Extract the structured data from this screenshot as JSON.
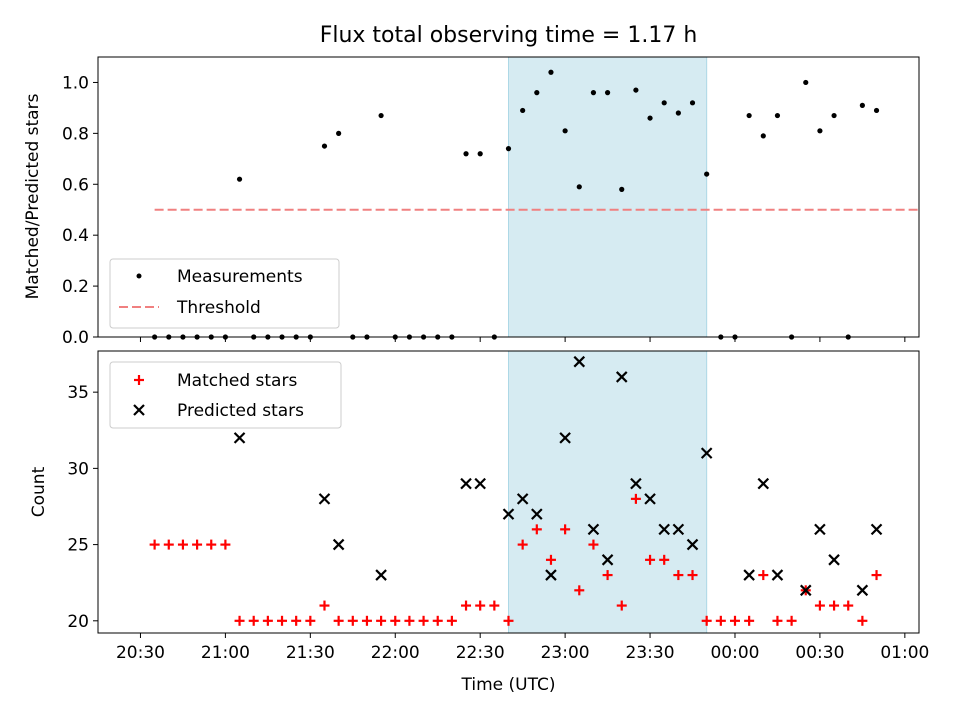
{
  "colors": {
    "shade": "#add8e6",
    "threshold": "#f08080",
    "matched": "#ff0000",
    "predicted": "#000000",
    "measurement": "#000000"
  },
  "chart_data": [
    {
      "type": "scatter",
      "title": "Flux total observing time = 1.17 h",
      "xlabel": "",
      "ylabel": "Matched/Predicted stars",
      "ylim": [
        0,
        1.1
      ],
      "yticks": [
        "0.0",
        "0.2",
        "0.4",
        "0.6",
        "0.8",
        "1.0"
      ],
      "shaded_span": [
        "22:40",
        "23:50"
      ],
      "legend": {
        "placement": "lower-left",
        "entries": [
          "Measurements",
          "Threshold"
        ]
      },
      "threshold": {
        "name": "Threshold",
        "value": 0.5,
        "x": [
          "20:35",
          "01:05"
        ]
      },
      "series": [
        {
          "name": "Measurements",
          "points": [
            [
              "20:35",
              0.0
            ],
            [
              "20:40",
              0.0
            ],
            [
              "20:45",
              0.0
            ],
            [
              "20:50",
              0.0
            ],
            [
              "20:55",
              0.0
            ],
            [
              "21:00",
              0.0
            ],
            [
              "21:05",
              0.62
            ],
            [
              "21:10",
              0.0
            ],
            [
              "21:15",
              0.0
            ],
            [
              "21:20",
              0.0
            ],
            [
              "21:25",
              0.0
            ],
            [
              "21:30",
              0.0
            ],
            [
              "21:35",
              0.75
            ],
            [
              "21:40",
              0.8
            ],
            [
              "21:45",
              0.0
            ],
            [
              "21:50",
              0.0
            ],
            [
              "21:55",
              0.87
            ],
            [
              "22:00",
              0.0
            ],
            [
              "22:05",
              0.0
            ],
            [
              "22:10",
              0.0
            ],
            [
              "22:15",
              0.0
            ],
            [
              "22:20",
              0.0
            ],
            [
              "22:25",
              0.72
            ],
            [
              "22:30",
              0.72
            ],
            [
              "22:35",
              0.0
            ],
            [
              "22:40",
              0.74
            ],
            [
              "22:45",
              0.89
            ],
            [
              "22:50",
              0.96
            ],
            [
              "22:55",
              1.04
            ],
            [
              "23:00",
              0.81
            ],
            [
              "23:05",
              0.59
            ],
            [
              "23:10",
              0.96
            ],
            [
              "23:15",
              0.96
            ],
            [
              "23:20",
              0.58
            ],
            [
              "23:25",
              0.97
            ],
            [
              "23:30",
              0.86
            ],
            [
              "23:35",
              0.92
            ],
            [
              "23:40",
              0.88
            ],
            [
              "23:45",
              0.92
            ],
            [
              "23:50",
              0.64
            ],
            [
              "23:55",
              0.0
            ],
            [
              "00:00",
              0.0
            ],
            [
              "00:05",
              0.87
            ],
            [
              "00:10",
              0.79
            ],
            [
              "00:15",
              0.87
            ],
            [
              "00:20",
              0.0
            ],
            [
              "00:25",
              1.0
            ],
            [
              "00:30",
              0.81
            ],
            [
              "00:35",
              0.87
            ],
            [
              "00:40",
              0.0
            ],
            [
              "00:45",
              0.91
            ],
            [
              "00:50",
              0.89
            ]
          ]
        }
      ]
    },
    {
      "type": "scatter",
      "title": "",
      "xlabel": "Time (UTC)",
      "ylabel": "Count",
      "ylim": [
        19.2,
        37.7
      ],
      "yticks": [
        "20",
        "25",
        "30",
        "35"
      ],
      "xticks": [
        "20:30",
        "21:00",
        "21:30",
        "22:00",
        "22:30",
        "23:00",
        "23:30",
        "00:00",
        "00:30",
        "01:00"
      ],
      "shaded_span": [
        "22:40",
        "23:50"
      ],
      "legend": {
        "placement": "upper-left",
        "entries": [
          "Matched stars",
          "Predicted stars"
        ]
      },
      "series": [
        {
          "name": "Matched stars",
          "marker": "plus",
          "points": [
            [
              "20:35",
              25
            ],
            [
              "20:40",
              25
            ],
            [
              "20:45",
              25
            ],
            [
              "20:50",
              25
            ],
            [
              "20:55",
              25
            ],
            [
              "21:00",
              25
            ],
            [
              "21:05",
              20
            ],
            [
              "21:10",
              20
            ],
            [
              "21:15",
              20
            ],
            [
              "21:20",
              20
            ],
            [
              "21:25",
              20
            ],
            [
              "21:30",
              20
            ],
            [
              "21:35",
              21
            ],
            [
              "21:40",
              20
            ],
            [
              "21:45",
              20
            ],
            [
              "21:50",
              20
            ],
            [
              "21:55",
              20
            ],
            [
              "22:00",
              20
            ],
            [
              "22:05",
              20
            ],
            [
              "22:10",
              20
            ],
            [
              "22:15",
              20
            ],
            [
              "22:20",
              20
            ],
            [
              "22:25",
              21
            ],
            [
              "22:30",
              21
            ],
            [
              "22:35",
              21
            ],
            [
              "22:40",
              20
            ],
            [
              "22:45",
              25
            ],
            [
              "22:50",
              26
            ],
            [
              "22:55",
              24
            ],
            [
              "23:00",
              26
            ],
            [
              "23:05",
              22
            ],
            [
              "23:10",
              25
            ],
            [
              "23:15",
              23
            ],
            [
              "23:20",
              21
            ],
            [
              "23:25",
              28
            ],
            [
              "23:30",
              24
            ],
            [
              "23:35",
              24
            ],
            [
              "23:40",
              23
            ],
            [
              "23:45",
              23
            ],
            [
              "23:50",
              20
            ],
            [
              "23:55",
              20
            ],
            [
              "00:00",
              20
            ],
            [
              "00:05",
              20
            ],
            [
              "00:10",
              23
            ],
            [
              "00:15",
              20
            ],
            [
              "00:20",
              20
            ],
            [
              "00:25",
              22
            ],
            [
              "00:30",
              21
            ],
            [
              "00:35",
              21
            ],
            [
              "00:40",
              21
            ],
            [
              "00:45",
              20
            ],
            [
              "00:50",
              23
            ]
          ]
        },
        {
          "name": "Predicted stars",
          "marker": "x",
          "points": [
            [
              "21:05",
              32
            ],
            [
              "21:35",
              28
            ],
            [
              "21:40",
              25
            ],
            [
              "21:55",
              23
            ],
            [
              "22:25",
              29
            ],
            [
              "22:30",
              29
            ],
            [
              "22:40",
              27
            ],
            [
              "22:45",
              28
            ],
            [
              "22:50",
              27
            ],
            [
              "22:55",
              23
            ],
            [
              "23:00",
              32
            ],
            [
              "23:05",
              37
            ],
            [
              "23:10",
              26
            ],
            [
              "23:15",
              24
            ],
            [
              "23:20",
              36
            ],
            [
              "23:25",
              29
            ],
            [
              "23:30",
              28
            ],
            [
              "23:35",
              26
            ],
            [
              "23:40",
              26
            ],
            [
              "23:45",
              25
            ],
            [
              "23:50",
              31
            ],
            [
              "00:05",
              23
            ],
            [
              "00:10",
              29
            ],
            [
              "00:15",
              23
            ],
            [
              "00:25",
              22
            ],
            [
              "00:30",
              26
            ],
            [
              "00:35",
              24
            ],
            [
              "00:45",
              22
            ],
            [
              "00:50",
              26
            ]
          ]
        }
      ]
    }
  ]
}
